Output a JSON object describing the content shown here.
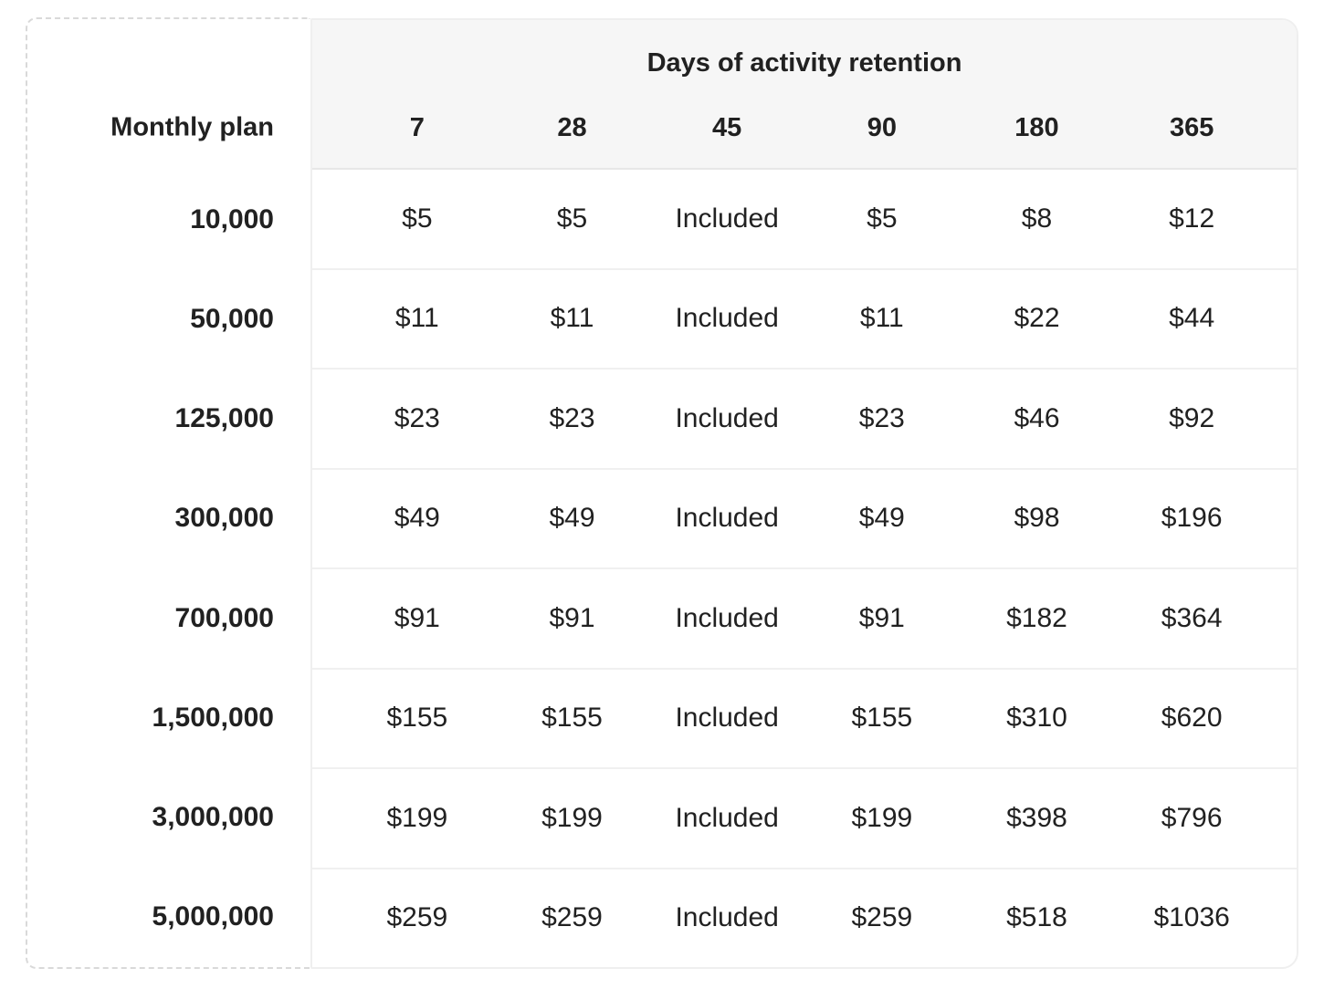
{
  "colors": {
    "header_background": "#f6f6f6",
    "grid_line": "#f0f0f0",
    "header_divider": "#e7e7e7",
    "dashed_border": "#d9d9d9",
    "text": "#212121"
  },
  "chart_data": {
    "type": "table",
    "title": "Days of activity retention",
    "row_header_label": "Monthly plan",
    "columns": [
      "7",
      "28",
      "45",
      "90",
      "180",
      "365"
    ],
    "included_column": "45",
    "rows": [
      {
        "plan": "10,000",
        "values": [
          "$5",
          "$5",
          "Included",
          "$5",
          "$8",
          "$12"
        ]
      },
      {
        "plan": "50,000",
        "values": [
          "$11",
          "$11",
          "Included",
          "$11",
          "$22",
          "$44"
        ]
      },
      {
        "plan": "125,000",
        "values": [
          "$23",
          "$23",
          "Included",
          "$23",
          "$46",
          "$92"
        ]
      },
      {
        "plan": "300,000",
        "values": [
          "$49",
          "$49",
          "Included",
          "$49",
          "$98",
          "$196"
        ]
      },
      {
        "plan": "700,000",
        "values": [
          "$91",
          "$91",
          "Included",
          "$91",
          "$182",
          "$364"
        ]
      },
      {
        "plan": "1,500,000",
        "values": [
          "$155",
          "$155",
          "Included",
          "$155",
          "$310",
          "$620"
        ]
      },
      {
        "plan": "3,000,000",
        "values": [
          "$199",
          "$199",
          "Included",
          "$199",
          "$398",
          "$796"
        ]
      },
      {
        "plan": "5,000,000",
        "values": [
          "$259",
          "$259",
          "Included",
          "$259",
          "$518",
          "$1036"
        ]
      }
    ]
  }
}
